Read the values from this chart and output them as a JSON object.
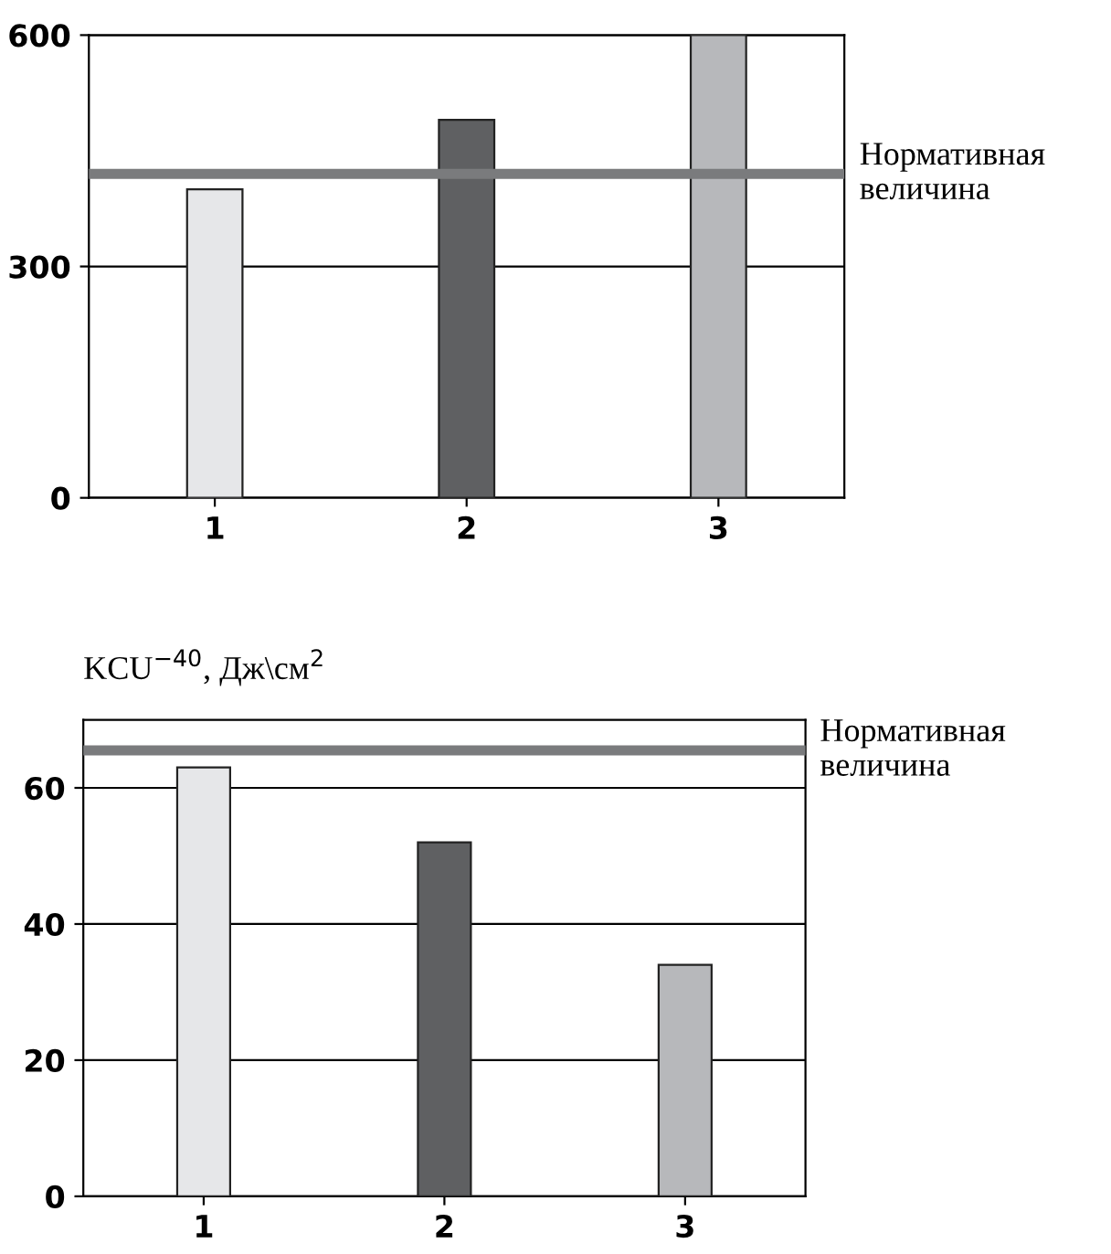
{
  "chart_data": [
    {
      "type": "bar",
      "categories": [
        "1",
        "2",
        "3"
      ],
      "values": [
        400,
        490,
        600
      ],
      "colors": [
        "#e6e7e9",
        "#5f6062",
        "#b7b8bb"
      ],
      "ylim": [
        0,
        600
      ],
      "yticks": [
        0,
        300,
        600
      ],
      "grid": "y",
      "ref_lines": [
        {
          "axis": "y",
          "value": 420,
          "label": "Нормативная величина",
          "color": "#7a7b7d"
        }
      ]
    },
    {
      "type": "bar",
      "ylabel": "KCU$^{−40}$, Дж\\см$^{2}$",
      "categories": [
        "1",
        "2",
        "3"
      ],
      "values": [
        63,
        52,
        34
      ],
      "colors": [
        "#e6e7e9",
        "#5f6062",
        "#b7b8bb"
      ],
      "ylim": [
        0,
        70
      ],
      "yticks": [
        0,
        20,
        40,
        60
      ],
      "grid": "y",
      "ref_lines": [
        {
          "axis": "y",
          "value": 65.5,
          "label": "Нормативная величина",
          "color": "#7a7b7d"
        }
      ]
    }
  ]
}
